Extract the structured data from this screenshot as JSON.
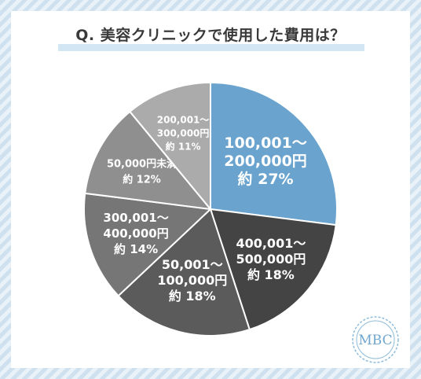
{
  "title": "Q. 美容クリニックで使用した費用は？",
  "logo_text": "MBC",
  "chart_data": {
    "type": "pie",
    "title": "Q. 美容クリニックで使用した費用は？",
    "slices": [
      {
        "lines": [
          "100,001～",
          "200,000円",
          "約 27%"
        ],
        "value": 27,
        "color": "#6aa4ce"
      },
      {
        "lines": [
          "400,001～",
          "500,000円",
          "約 18%"
        ],
        "value": 18,
        "color": "#444444"
      },
      {
        "lines": [
          "50,001～",
          "100,000円",
          "約 18%"
        ],
        "value": 18,
        "color": "#5b5b5b"
      },
      {
        "lines": [
          "300,001～",
          "400,000円",
          "約 14%"
        ],
        "value": 14,
        "color": "#767676"
      },
      {
        "lines": [
          "50,000円未満",
          "約 12%"
        ],
        "value": 12,
        "color": "#8f8f8f"
      },
      {
        "lines": [
          "200,001～",
          "300,000円",
          "約 11%"
        ],
        "value": 11,
        "color": "#ababab"
      }
    ]
  }
}
